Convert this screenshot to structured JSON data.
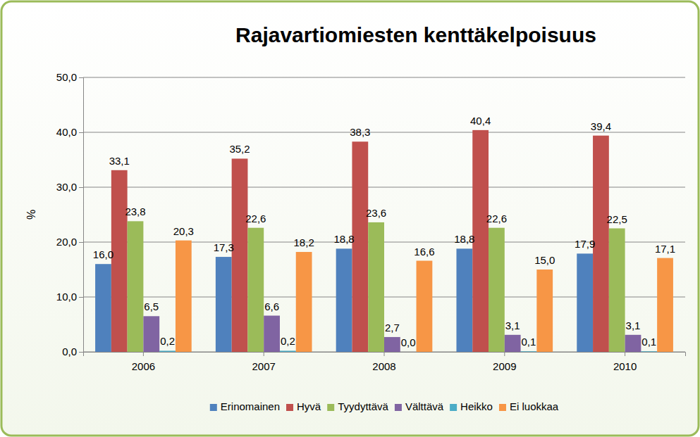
{
  "chart_data": {
    "type": "bar",
    "title": "Rajavartiomiesten kenttäkelpoisuus",
    "y_label": "%",
    "categories": [
      "2006",
      "2007",
      "2008",
      "2009",
      "2010"
    ],
    "series": [
      {
        "name": "Erinomainen",
        "color": "#4F81BD",
        "values": [
          16.0,
          17.3,
          18.8,
          18.8,
          17.9
        ],
        "value_labels": [
          "16,0",
          "17,3",
          "18,8",
          "18,8",
          "17,9"
        ]
      },
      {
        "name": "Hyvä",
        "color": "#C0504D",
        "values": [
          33.1,
          35.2,
          38.3,
          40.4,
          39.4
        ],
        "value_labels": [
          "33,1",
          "35,2",
          "38,3",
          "40,4",
          "39,4"
        ]
      },
      {
        "name": "Tyydyttävä",
        "color": "#9BBB59",
        "values": [
          23.8,
          22.6,
          23.6,
          22.6,
          22.5
        ],
        "value_labels": [
          "23,8",
          "22,6",
          "23,6",
          "22,6",
          "22,5"
        ]
      },
      {
        "name": "Välttävä",
        "color": "#8064A2",
        "values": [
          6.5,
          6.6,
          2.7,
          3.1,
          3.1
        ],
        "value_labels": [
          "6,5",
          "6,6",
          "2,7",
          "3,1",
          "3,1"
        ]
      },
      {
        "name": "Heikko",
        "color": "#4BACC6",
        "values": [
          0.2,
          0.2,
          0.0,
          0.1,
          0.1
        ],
        "value_labels": [
          "0,2",
          "0,2",
          "0,0",
          "0,1",
          "0,1"
        ]
      },
      {
        "name": "Ei luokkaa",
        "color": "#F79646",
        "values": [
          20.3,
          18.2,
          16.6,
          15.0,
          17.1
        ],
        "value_labels": [
          "20,3",
          "18,2",
          "16,6",
          "15,0",
          "17,1"
        ]
      }
    ],
    "ylim": [
      0,
      50
    ],
    "yticks": [
      {
        "value": 0,
        "label": "0,0"
      },
      {
        "value": 10,
        "label": "10,0"
      },
      {
        "value": 20,
        "label": "20,0"
      },
      {
        "value": 30,
        "label": "30,0"
      },
      {
        "value": 40,
        "label": "40,0"
      },
      {
        "value": 50,
        "label": "50,0"
      }
    ],
    "grid": true,
    "legend": "bottom",
    "data_labels": true
  }
}
